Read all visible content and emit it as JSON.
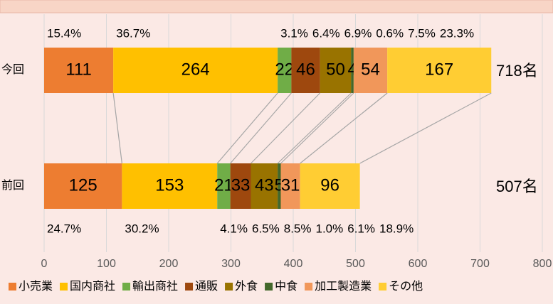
{
  "chart_data": {
    "type": "stacked_barh",
    "categories": [
      "今回",
      "前回"
    ],
    "total_labels": [
      "718名",
      "507名"
    ],
    "xlim": [
      0,
      800
    ],
    "xticks": [
      0,
      100,
      200,
      300,
      400,
      500,
      600,
      700,
      800
    ],
    "grid": true,
    "legend": "bottom",
    "series": [
      {
        "name": "小売業",
        "color": "#ED7D31",
        "values": [
          111,
          125
        ],
        "shares": [
          15.4,
          24.7
        ],
        "share_labels": [
          "15.4%",
          "24.7%"
        ]
      },
      {
        "name": "国内商社",
        "color": "#FFC000",
        "values": [
          264,
          153
        ],
        "shares": [
          36.7,
          30.2
        ],
        "share_labels": [
          "36.7%",
          "30.2%"
        ]
      },
      {
        "name": "輸出商社",
        "color": "#70AD47",
        "values": [
          22,
          21
        ],
        "shares": [
          3.1,
          4.1
        ],
        "share_labels": [
          "3.1%",
          "4.1%"
        ]
      },
      {
        "name": "通販",
        "color": "#9E480E",
        "values": [
          46,
          33
        ],
        "shares": [
          6.4,
          6.5
        ],
        "share_labels": [
          "6.4%",
          "6.5%"
        ]
      },
      {
        "name": "外食",
        "color": "#997300",
        "values": [
          50,
          43
        ],
        "shares": [
          6.9,
          8.5
        ],
        "share_labels": [
          "6.9%",
          "8.5%"
        ]
      },
      {
        "name": "中食",
        "color": "#43682B",
        "values": [
          4,
          5
        ],
        "shares": [
          0.6,
          1.0
        ],
        "share_labels": [
          "0.6%",
          "1.0%"
        ]
      },
      {
        "name": "加工製造業",
        "color": "#F1975A",
        "values": [
          54,
          31
        ],
        "shares": [
          7.5,
          6.1
        ],
        "share_labels": [
          "7.5%",
          "6.1%"
        ]
      },
      {
        "name": "その他",
        "color": "#FFCD33",
        "values": [
          167,
          96
        ],
        "shares": [
          23.3,
          18.9
        ],
        "share_labels": [
          "23.3%",
          "18.9%"
        ]
      }
    ]
  }
}
